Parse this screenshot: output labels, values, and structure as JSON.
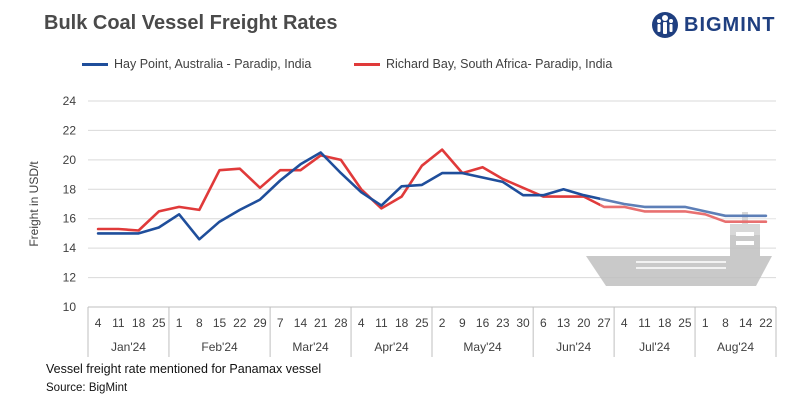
{
  "title": "Bulk Coal Vessel Freight Rates",
  "logo": {
    "text": "BIGMINT",
    "icon": "bigmint-people-icon"
  },
  "footnote": "Vessel freight rate mentioned for Panamax vessel",
  "source": "Source: BigMint",
  "colors": {
    "series1": "#1f4e9b",
    "series2": "#e03a3a",
    "grid": "#d9d9d9",
    "ship": "#bfbfbf"
  },
  "chart_data": {
    "type": "line",
    "title": "Bulk Coal Vessel Freight Rates",
    "ylabel": "Freight in USD/t",
    "xlabel": "",
    "ylim": [
      10,
      24
    ],
    "yticks": [
      10,
      12,
      14,
      16,
      18,
      20,
      22,
      24
    ],
    "grid": "horizontal",
    "legend_position": "top",
    "x": [
      "4",
      "11",
      "18",
      "25",
      "1",
      "8",
      "15",
      "22",
      "29",
      "7",
      "14",
      "21",
      "28",
      "4",
      "11",
      "18",
      "25",
      "2",
      "9",
      "16",
      "23",
      "30",
      "6",
      "13",
      "20",
      "27",
      "4",
      "11",
      "18",
      "25",
      "1",
      "8",
      "14",
      "22"
    ],
    "months": [
      {
        "label": "Jan'24",
        "count": 4
      },
      {
        "label": "Feb'24",
        "count": 5
      },
      {
        "label": "Mar'24",
        "count": 4
      },
      {
        "label": "Apr'24",
        "count": 4
      },
      {
        "label": "May'24",
        "count": 5
      },
      {
        "label": "Jun'24",
        "count": 4
      },
      {
        "label": "Jul'24",
        "count": 4
      },
      {
        "label": "Aug'24",
        "count": 4
      }
    ],
    "series": [
      {
        "name": "Hay Point, Australia - Paradip, India",
        "values": [
          15,
          15,
          15,
          15.4,
          16.3,
          14.6,
          15.8,
          16.6,
          17.3,
          18.6,
          19.7,
          20.5,
          19.1,
          17.8,
          16.9,
          18.2,
          18.3,
          19.1,
          19.1,
          18.8,
          18.5,
          17.6,
          17.6,
          18,
          17.6,
          17.3,
          17,
          16.8,
          16.8,
          16.8,
          16.5,
          16.2,
          16.2,
          16.2
        ]
      },
      {
        "name": "Richard Bay, South Africa- Paradip, India",
        "values": [
          15.3,
          15.3,
          15.2,
          16.5,
          16.8,
          16.6,
          19.3,
          19.4,
          18.1,
          19.3,
          19.3,
          20.3,
          20,
          18,
          16.7,
          17.5,
          19.6,
          20.7,
          19.1,
          19.5,
          18.7,
          18.1,
          17.5,
          17.5,
          17.5,
          16.8,
          16.8,
          16.5,
          16.5,
          16.5,
          16.3,
          15.8,
          15.8,
          15.8
        ]
      }
    ]
  }
}
